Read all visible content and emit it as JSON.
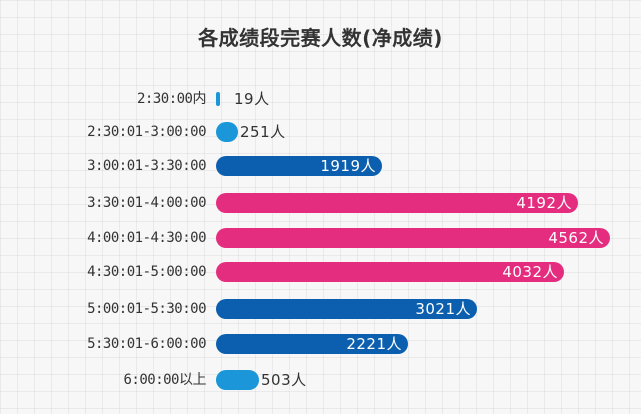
{
  "title": "各成绩段完赛人数(净成绩)",
  "colors": {
    "dark_blue": "#0b5fae",
    "pink": "#e42d7f",
    "light_blue": "#1a96d9"
  },
  "rows": [
    {
      "label": "2:30:00内",
      "value_text": "19人",
      "value": 19,
      "color": "#1a96d9"
    },
    {
      "label": "2:30:01-3:00:00",
      "value_text": "251人",
      "value": 251,
      "color": "#1a96d9"
    },
    {
      "label": "3:00:01-3:30:00",
      "value_text": "1919人",
      "value": 1919,
      "color": "#0b5fae"
    },
    {
      "label": "3:30:01-4:00:00",
      "value_text": "4192人",
      "value": 4192,
      "color": "#e42d7f"
    },
    {
      "label": "4:00:01-4:30:00",
      "value_text": "4562人",
      "value": 4562,
      "color": "#e42d7f"
    },
    {
      "label": "4:30:01-5:00:00",
      "value_text": "4032人",
      "value": 4032,
      "color": "#e42d7f"
    },
    {
      "label": "5:00:01-5:30:00",
      "value_text": "3021人",
      "value": 3021,
      "color": "#0b5fae"
    },
    {
      "label": "5:30:01-6:00:00",
      "value_text": "2221人",
      "value": 2221,
      "color": "#0b5fae"
    },
    {
      "label": "6:00:00以上",
      "value_text": "503人",
      "value": 503,
      "color": "#1a96d9"
    }
  ],
  "chart_data": {
    "type": "bar",
    "orientation": "horizontal",
    "title": "各成绩段完赛人数(净成绩)",
    "xlabel": "",
    "ylabel": "",
    "categories": [
      "2:30:00内",
      "2:30:01-3:00:00",
      "3:00:01-3:30:00",
      "3:30:01-4:00:00",
      "4:00:01-4:30:00",
      "4:30:01-5:00:00",
      "5:00:01-5:30:00",
      "5:30:01-6:00:00",
      "6:00:00以上"
    ],
    "values": [
      19,
      251,
      1919,
      4192,
      4562,
      4032,
      3021,
      2221,
      503
    ],
    "unit": "人",
    "grid": true,
    "legend": null
  }
}
